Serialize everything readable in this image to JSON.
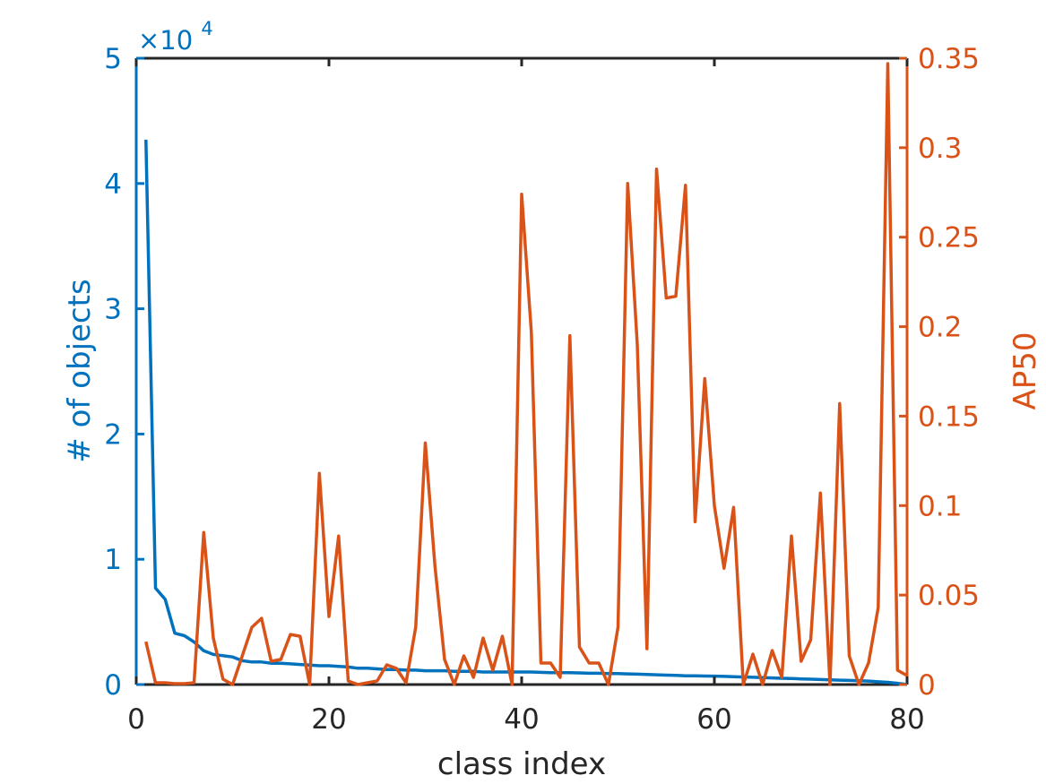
{
  "chart_data": {
    "type": "line",
    "xlabel": "class index",
    "ylabel_left": "# of objects",
    "ylabel_right": "AP50",
    "left_axis_multiplier": {
      "base": "×10",
      "exponent": "4"
    },
    "xlim": [
      0,
      80
    ],
    "ylim_left": [
      0,
      5
    ],
    "ylim_right": [
      0,
      0.35
    ],
    "x_ticks": [
      0,
      20,
      40,
      60,
      80
    ],
    "y_ticks_left": [
      0,
      1,
      2,
      3,
      4,
      5
    ],
    "y_ticks_right": [
      0,
      0.05,
      0.1,
      0.15,
      0.2,
      0.25,
      0.3,
      0.35
    ],
    "x_tick_labels": [
      "0",
      "20",
      "40",
      "60",
      "80"
    ],
    "y_tick_labels_left": [
      "0",
      "1",
      "2",
      "3",
      "4",
      "5"
    ],
    "y_tick_labels_right": [
      "0",
      "0.05",
      "0.1",
      "0.15",
      "0.2",
      "0.25",
      "0.3",
      "0.35"
    ],
    "grid": false,
    "series": [
      {
        "axis": "left",
        "color": "#0072BD",
        "x": [
          1,
          2,
          3,
          4,
          5,
          6,
          7,
          8,
          9,
          10,
          11,
          12,
          13,
          14,
          15,
          16,
          17,
          18,
          19,
          20,
          21,
          22,
          23,
          24,
          25,
          26,
          27,
          28,
          29,
          30,
          31,
          32,
          33,
          34,
          35,
          36,
          37,
          38,
          39,
          40,
          41,
          42,
          43,
          44,
          45,
          46,
          47,
          48,
          49,
          50,
          51,
          52,
          53,
          54,
          55,
          56,
          57,
          58,
          59,
          60,
          61,
          62,
          63,
          64,
          65,
          66,
          67,
          68,
          69,
          70,
          71,
          72,
          73,
          74,
          75,
          76,
          77,
          78,
          79,
          80
        ],
        "values": [
          4.35,
          0.77,
          0.68,
          0.41,
          0.39,
          0.34,
          0.27,
          0.24,
          0.23,
          0.22,
          0.19,
          0.18,
          0.18,
          0.17,
          0.17,
          0.165,
          0.16,
          0.155,
          0.15,
          0.15,
          0.145,
          0.14,
          0.13,
          0.13,
          0.125,
          0.12,
          0.12,
          0.115,
          0.115,
          0.11,
          0.11,
          0.11,
          0.105,
          0.105,
          0.105,
          0.1,
          0.1,
          0.1,
          0.1,
          0.1,
          0.1,
          0.097,
          0.095,
          0.095,
          0.095,
          0.093,
          0.09,
          0.09,
          0.088,
          0.087,
          0.085,
          0.083,
          0.08,
          0.078,
          0.075,
          0.073,
          0.07,
          0.07,
          0.068,
          0.067,
          0.065,
          0.063,
          0.06,
          0.058,
          0.055,
          0.053,
          0.05,
          0.048,
          0.045,
          0.043,
          0.04,
          0.038,
          0.035,
          0.033,
          0.03,
          0.028,
          0.022,
          0.018,
          0.01,
          0.0
        ]
      },
      {
        "axis": "right",
        "color": "#D95319",
        "x": [
          1,
          2,
          3,
          4,
          5,
          6,
          7,
          8,
          9,
          10,
          11,
          12,
          13,
          14,
          15,
          16,
          17,
          18,
          19,
          20,
          21,
          22,
          23,
          24,
          25,
          26,
          27,
          28,
          29,
          30,
          31,
          32,
          33,
          34,
          35,
          36,
          37,
          38,
          39,
          40,
          41,
          42,
          43,
          44,
          45,
          46,
          47,
          48,
          49,
          50,
          51,
          52,
          53,
          54,
          55,
          56,
          57,
          58,
          59,
          60,
          61,
          62,
          63,
          64,
          65,
          66,
          67,
          68,
          69,
          70,
          71,
          72,
          73,
          74,
          75,
          76,
          77,
          78,
          79,
          80
        ],
        "values": [
          0.024,
          0.001,
          0.001,
          0.0005,
          0.0005,
          0.001,
          0.085,
          0.026,
          0.003,
          0.0,
          0.016,
          0.032,
          0.037,
          0.013,
          0.014,
          0.028,
          0.027,
          0.0,
          0.118,
          0.038,
          0.083,
          0.002,
          0.0,
          0.001,
          0.002,
          0.011,
          0.009,
          0.001,
          0.032,
          0.135,
          0.066,
          0.014,
          0.0,
          0.016,
          0.004,
          0.026,
          0.008,
          0.027,
          0.0,
          0.274,
          0.197,
          0.012,
          0.012,
          0.004,
          0.195,
          0.021,
          0.012,
          0.012,
          0.0,
          0.032,
          0.28,
          0.19,
          0.02,
          0.288,
          0.216,
          0.217,
          0.279,
          0.091,
          0.171,
          0.1,
          0.065,
          0.099,
          0.0,
          0.017,
          0.0,
          0.019,
          0.004,
          0.083,
          0.013,
          0.025,
          0.107,
          0.0,
          0.157,
          0.016,
          0.0,
          0.012,
          0.043,
          0.347,
          0.008,
          0.005
        ]
      }
    ]
  }
}
